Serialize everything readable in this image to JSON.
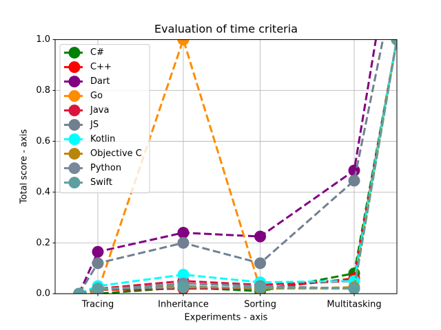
{
  "chart_data": {
    "type": "line",
    "title": "Evaluation of time criteria",
    "xlabel": "Experiments - axis",
    "ylabel": "Total score - axis",
    "x": [
      0.35,
      0.625,
      1.875,
      3.0,
      4.375,
      5.0
    ],
    "xlim": [
      0,
      5
    ],
    "xticks": [
      {
        "value": 0.625,
        "label": "Tracing"
      },
      {
        "value": 1.875,
        "label": "Inheritance"
      },
      {
        "value": 3.0,
        "label": "Sorting"
      },
      {
        "value": 4.375,
        "label": "Multitasking"
      }
    ],
    "ylim": [
      0,
      1
    ],
    "yticks": [
      {
        "value": 0,
        "label": "0.0"
      },
      {
        "value": 0.2,
        "label": "0.2"
      },
      {
        "value": 0.4,
        "label": "0.4"
      },
      {
        "value": 0.6,
        "label": "0.6"
      },
      {
        "value": 0.8,
        "label": "0.8"
      },
      {
        "value": 1,
        "label": "1.0"
      }
    ],
    "grid": true,
    "legend": "upper left",
    "series": [
      {
        "name": "C#",
        "color": "#008000",
        "values": [
          0,
          0.0,
          0.025,
          0.01,
          0.08,
          1.0
        ]
      },
      {
        "name": "C++",
        "color": "#ff0000",
        "values": [
          0,
          0.015,
          0.02,
          0.02,
          0.06,
          1.0
        ]
      },
      {
        "name": "Dart",
        "color": "#800080",
        "values": [
          0,
          0.165,
          0.24,
          0.225,
          0.485,
          1.5
        ]
      },
      {
        "name": "Go",
        "color": "#ff8c00",
        "values": [
          0,
          0.01,
          1.0,
          0.02,
          0.02,
          1.0
        ]
      },
      {
        "name": "Java",
        "color": "#dc143c",
        "values": [
          0,
          0.02,
          0.05,
          0.035,
          0.05,
          1.0
        ]
      },
      {
        "name": "JS",
        "color": "#708090",
        "values": [
          0,
          0.12,
          0.2,
          0.12,
          0.445,
          1.27
        ]
      },
      {
        "name": "Kotlin",
        "color": "#00ffff",
        "values": [
          0,
          0.03,
          0.075,
          0.045,
          0.05,
          1.0
        ]
      },
      {
        "name": "Objective C",
        "color": "#b8860b",
        "values": [
          0,
          0.02,
          0.03,
          0.02,
          0.025,
          1.0
        ]
      },
      {
        "name": "Python",
        "color": "#778899",
        "values": [
          0,
          0.015,
          0.04,
          0.03,
          0.02,
          1.0
        ]
      },
      {
        "name": "Swift",
        "color": "#5f9ea0",
        "values": [
          0,
          0.02,
          0.025,
          0.025,
          0.02,
          1.0
        ]
      }
    ]
  }
}
